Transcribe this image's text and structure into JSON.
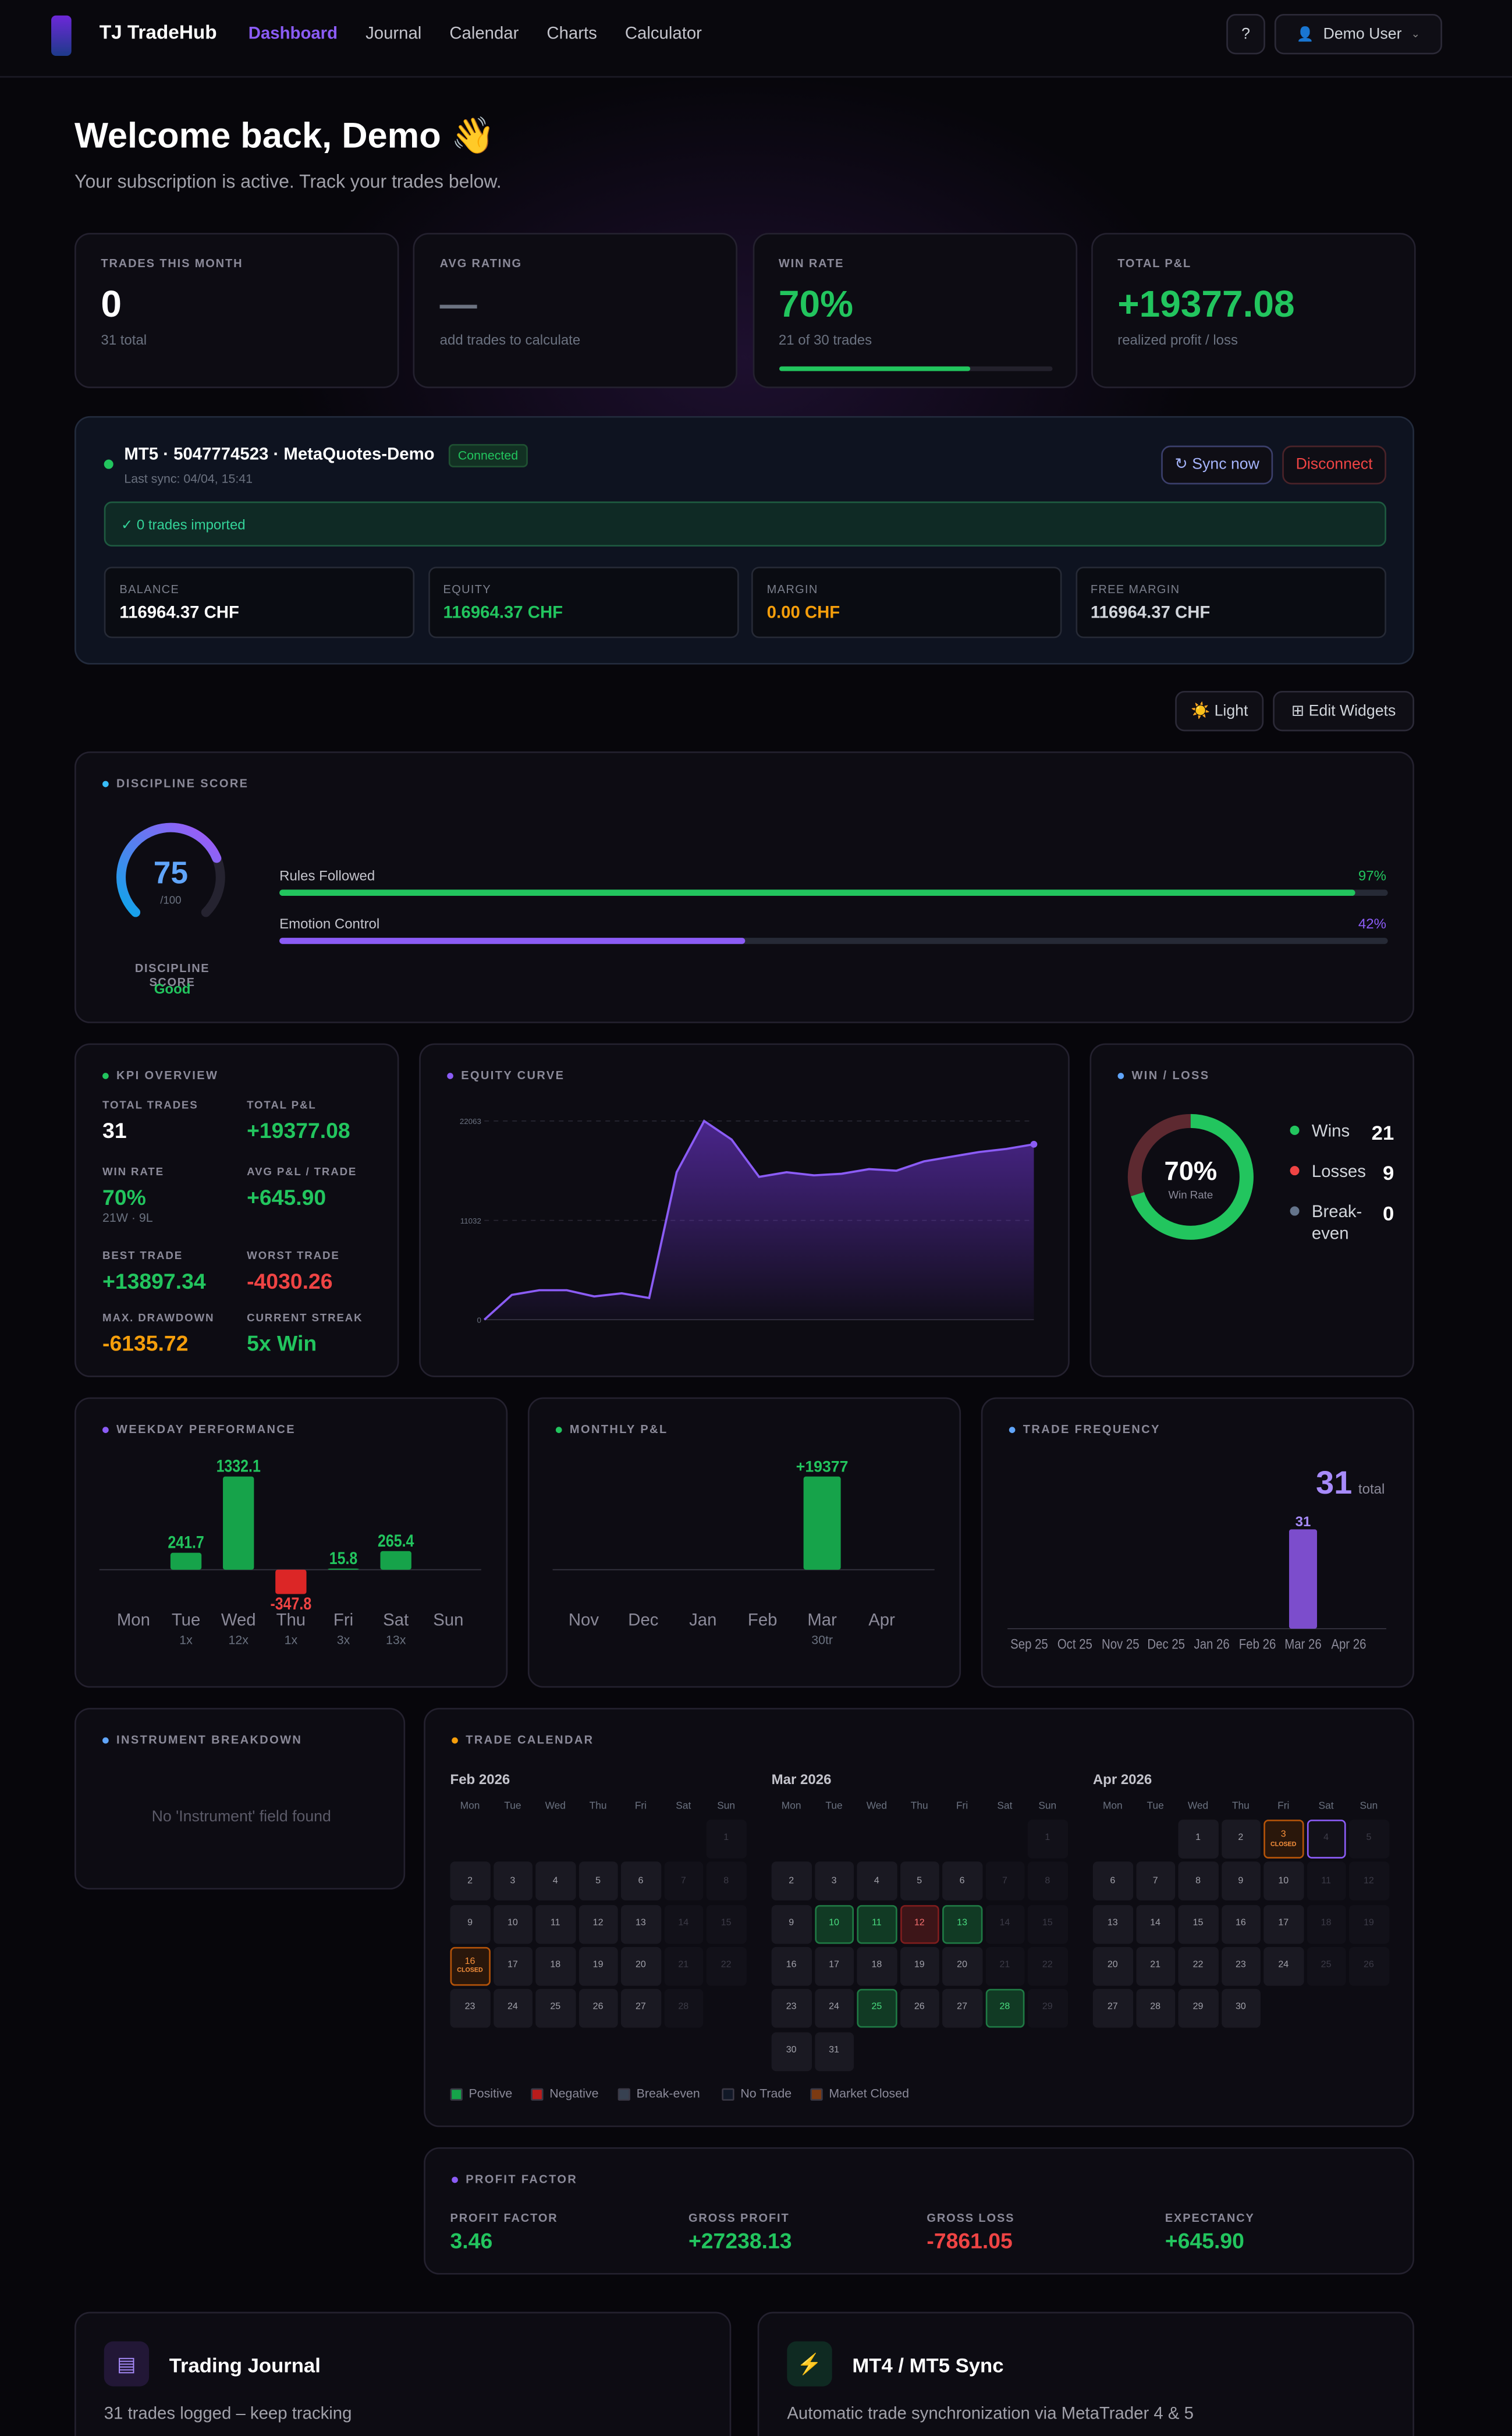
{
  "nav": {
    "brand": "TJ TradeHub",
    "links": [
      "Dashboard",
      "Journal",
      "Calendar",
      "Charts",
      "Calculator"
    ],
    "help": "?",
    "user": "Demo User"
  },
  "header": {
    "title": "Welcome back, Demo 👋",
    "subtitle": "Your subscription is active. Track your trades below."
  },
  "stats": [
    {
      "label": "TRADES THIS MONTH",
      "value": "0",
      "note": "31 total",
      "color": "#ffffff"
    },
    {
      "label": "AVG RATING",
      "value": "—",
      "note": "add trades to calculate",
      "color": "#6b7280"
    },
    {
      "label": "WIN RATE",
      "value": "70%",
      "note": "21 of 30 trades",
      "color": "#22c55e",
      "progress": 70,
      "progress_lim": [
        0,
        100
      ]
    },
    {
      "label": "TOTAL P&L",
      "value": "+19377.08",
      "note": "realized profit / loss",
      "color": "#22c55e"
    }
  ],
  "account": {
    "name": "MT5 · 5047774523 · MetaQuotes-Demo",
    "status": "Connected",
    "last_sync": "Last sync: 04/04, 15:41",
    "sync_button": "↻ Sync now",
    "disconnect_button": "Disconnect",
    "import_message": "✓ 0 trades imported",
    "metrics": [
      {
        "label": "BALANCE",
        "value": "116964.37 CHF",
        "color": "#ffffff"
      },
      {
        "label": "EQUITY",
        "value": "116964.37 CHF",
        "color": "#22c55e"
      },
      {
        "label": "MARGIN",
        "value": "0.00 CHF",
        "color": "#f59e0b"
      },
      {
        "label": "FREE MARGIN",
        "value": "116964.37 CHF",
        "color": "#d1d5db"
      }
    ]
  },
  "toolbar": {
    "theme_button": "☀️ Light",
    "edit_button": "⊞ Edit Widgets"
  },
  "discipline": {
    "title": "DISCIPLINE SCORE",
    "score": 75,
    "gauge_lim": [
      0,
      100
    ],
    "max_label": "/100",
    "caption": "DISCIPLINE SCORE",
    "rating": "Good",
    "bars": [
      {
        "label": "Rules Followed",
        "value": 97,
        "value_label": "97%",
        "color": "#22c55e"
      },
      {
        "label": "Emotion Control",
        "value": 42,
        "value_label": "42%",
        "color": "#8b5cf6"
      }
    ],
    "bar_lim": [
      0,
      100
    ]
  },
  "kpi": {
    "title": "KPI OVERVIEW",
    "items": [
      {
        "label": "TOTAL TRADES",
        "value": "31",
        "color": "#ffffff"
      },
      {
        "label": "TOTAL P&L",
        "value": "+19377.08",
        "color": "#22c55e"
      },
      {
        "label": "WIN RATE",
        "value": "70%",
        "note": "21W · 9L",
        "color": "#22c55e"
      },
      {
        "label": "AVG P&L / TRADE",
        "value": "+645.90",
        "color": "#22c55e"
      },
      {
        "label": "BEST TRADE",
        "value": "+13897.34",
        "color": "#22c55e"
      },
      {
        "label": "WORST TRADE",
        "value": "-4030.26",
        "color": "#ef4444"
      },
      {
        "label": "MAX. DRAWDOWN",
        "value": "-6135.72",
        "color": "#f59e0b"
      },
      {
        "label": "CURRENT STREAK",
        "value": "5x Win",
        "color": "#22c55e"
      }
    ]
  },
  "equity_curve": {
    "title": "EQUITY CURVE",
    "color": "#8b5cf6",
    "values": [
      0,
      2758,
      3275,
      3275,
      2585,
      2930,
      2413,
      16375,
      22063,
      20000,
      15858,
      16375,
      16030,
      16203,
      16720,
      16547,
      17582,
      18099,
      18616,
      18961,
      19477
    ],
    "ylim": [
      0,
      22063
    ],
    "yticks": [
      0,
      11032,
      22063
    ]
  },
  "win_loss": {
    "title": "WIN / LOSS",
    "center_value": "70%",
    "center_label": "Win Rate",
    "items": [
      {
        "label": "Wins",
        "value": 21,
        "color": "#22c55e"
      },
      {
        "label": "Losses",
        "value": 9,
        "color": "#ef4444"
      },
      {
        "label": "Break-even",
        "value": 0,
        "color": "#64748b"
      }
    ]
  },
  "weekday": {
    "title": "WEEKDAY PERFORMANCE",
    "categories": [
      "Mon",
      "Tue",
      "Wed",
      "Thu",
      "Fri",
      "Sat",
      "Sun"
    ],
    "values": [
      null,
      241.7,
      1332.1,
      -347.8,
      15.8,
      265.4,
      null
    ],
    "counts": [
      null,
      "1x",
      "12x",
      "1x",
      "3x",
      "13x",
      null
    ]
  },
  "monthly": {
    "title": "MONTHLY P&L",
    "categories": [
      "Nov",
      "Dec",
      "Jan",
      "Feb",
      "Mar",
      "Apr"
    ],
    "values": [
      null,
      null,
      null,
      null,
      19377,
      null
    ],
    "value_labels": [
      null,
      null,
      null,
      null,
      "+19377",
      null
    ],
    "notes": [
      null,
      null,
      null,
      null,
      "30tr",
      null
    ]
  },
  "frequency": {
    "title": "TRADE FREQUENCY",
    "total": 31,
    "total_label": "total",
    "color": "#7c4dcc",
    "categories": [
      "Sep 25",
      "Oct 25",
      "Nov 25",
      "Dec 25",
      "Jan 26",
      "Feb 26",
      "Mar 26",
      "Apr 26"
    ],
    "values": [
      null,
      null,
      null,
      null,
      null,
      null,
      31,
      null
    ]
  },
  "instruments": {
    "title": "INSTRUMENT BREAKDOWN",
    "message": "No 'Instrument' field found"
  },
  "calendar": {
    "title": "TRADE CALENDAR",
    "closed_label": "CLOSED",
    "weekdays": [
      "Mon",
      "Tue",
      "Wed",
      "Thu",
      "Fri",
      "Sat",
      "Sun"
    ],
    "months": [
      {
        "name": "Feb 2026",
        "days": [
          1,
          2,
          3,
          4,
          5,
          6,
          7,
          8,
          9,
          10,
          11,
          12,
          13,
          14,
          15,
          16,
          17,
          18,
          19,
          20,
          21,
          22,
          23,
          24,
          25,
          26,
          27,
          28
        ],
        "status": [
          null,
          null,
          null,
          null,
          null,
          null,
          null,
          null,
          null,
          null,
          null,
          null,
          null,
          null,
          null,
          "closed",
          null,
          null,
          null,
          null,
          null,
          null,
          null,
          null,
          null,
          null,
          null,
          null
        ]
      },
      {
        "name": "Mar 2026",
        "days": [
          1,
          2,
          3,
          4,
          5,
          6,
          7,
          8,
          9,
          10,
          11,
          12,
          13,
          14,
          15,
          16,
          17,
          18,
          19,
          20,
          21,
          22,
          23,
          24,
          25,
          26,
          27,
          28,
          29,
          30,
          31
        ],
        "status": [
          null,
          null,
          null,
          null,
          null,
          null,
          null,
          null,
          null,
          "positive",
          "positive",
          "negative",
          "positive",
          null,
          null,
          null,
          null,
          null,
          null,
          null,
          null,
          null,
          null,
          null,
          "positive",
          null,
          null,
          "positive",
          null,
          null,
          null
        ]
      },
      {
        "name": "Apr 2026",
        "days": [
          1,
          2,
          3,
          4,
          5,
          6,
          7,
          8,
          9,
          10,
          11,
          12,
          13,
          14,
          15,
          16,
          17,
          18,
          19,
          20,
          21,
          22,
          23,
          24,
          25,
          26,
          27,
          28,
          29,
          30
        ],
        "status": [
          null,
          null,
          "closed",
          "today",
          null,
          null,
          null,
          null,
          null,
          null,
          null,
          null,
          null,
          null,
          null,
          null,
          null,
          null,
          null,
          null,
          null,
          null,
          null,
          null,
          null,
          null,
          null,
          null,
          null,
          null
        ]
      }
    ],
    "legend": [
      {
        "label": "Positive",
        "color": "#16a34a"
      },
      {
        "label": "Negative",
        "color": "#b91c1c"
      },
      {
        "label": "Break-even",
        "color": "#374151"
      },
      {
        "label": "No Trade",
        "color": "#111827"
      },
      {
        "label": "Market Closed",
        "color": "#7c3a12"
      }
    ]
  },
  "profit_factor": {
    "title": "PROFIT FACTOR",
    "items": [
      {
        "label": "PROFIT FACTOR",
        "value": "3.46",
        "color": "#22c55e"
      },
      {
        "label": "GROSS PROFIT",
        "value": "+27238.13",
        "color": "#22c55e"
      },
      {
        "label": "GROSS LOSS",
        "value": "-7861.05",
        "color": "#ef4444"
      },
      {
        "label": "EXPECTANCY",
        "value": "+645.90",
        "color": "#22c55e"
      }
    ]
  },
  "features": [
    {
      "title": "Trading Journal",
      "text": "31 trades logged – keep tracking"
    },
    {
      "title": "MT4 / MT5 Sync",
      "text": "Automatic trade synchronization via MetaTrader 4 & 5"
    }
  ]
}
